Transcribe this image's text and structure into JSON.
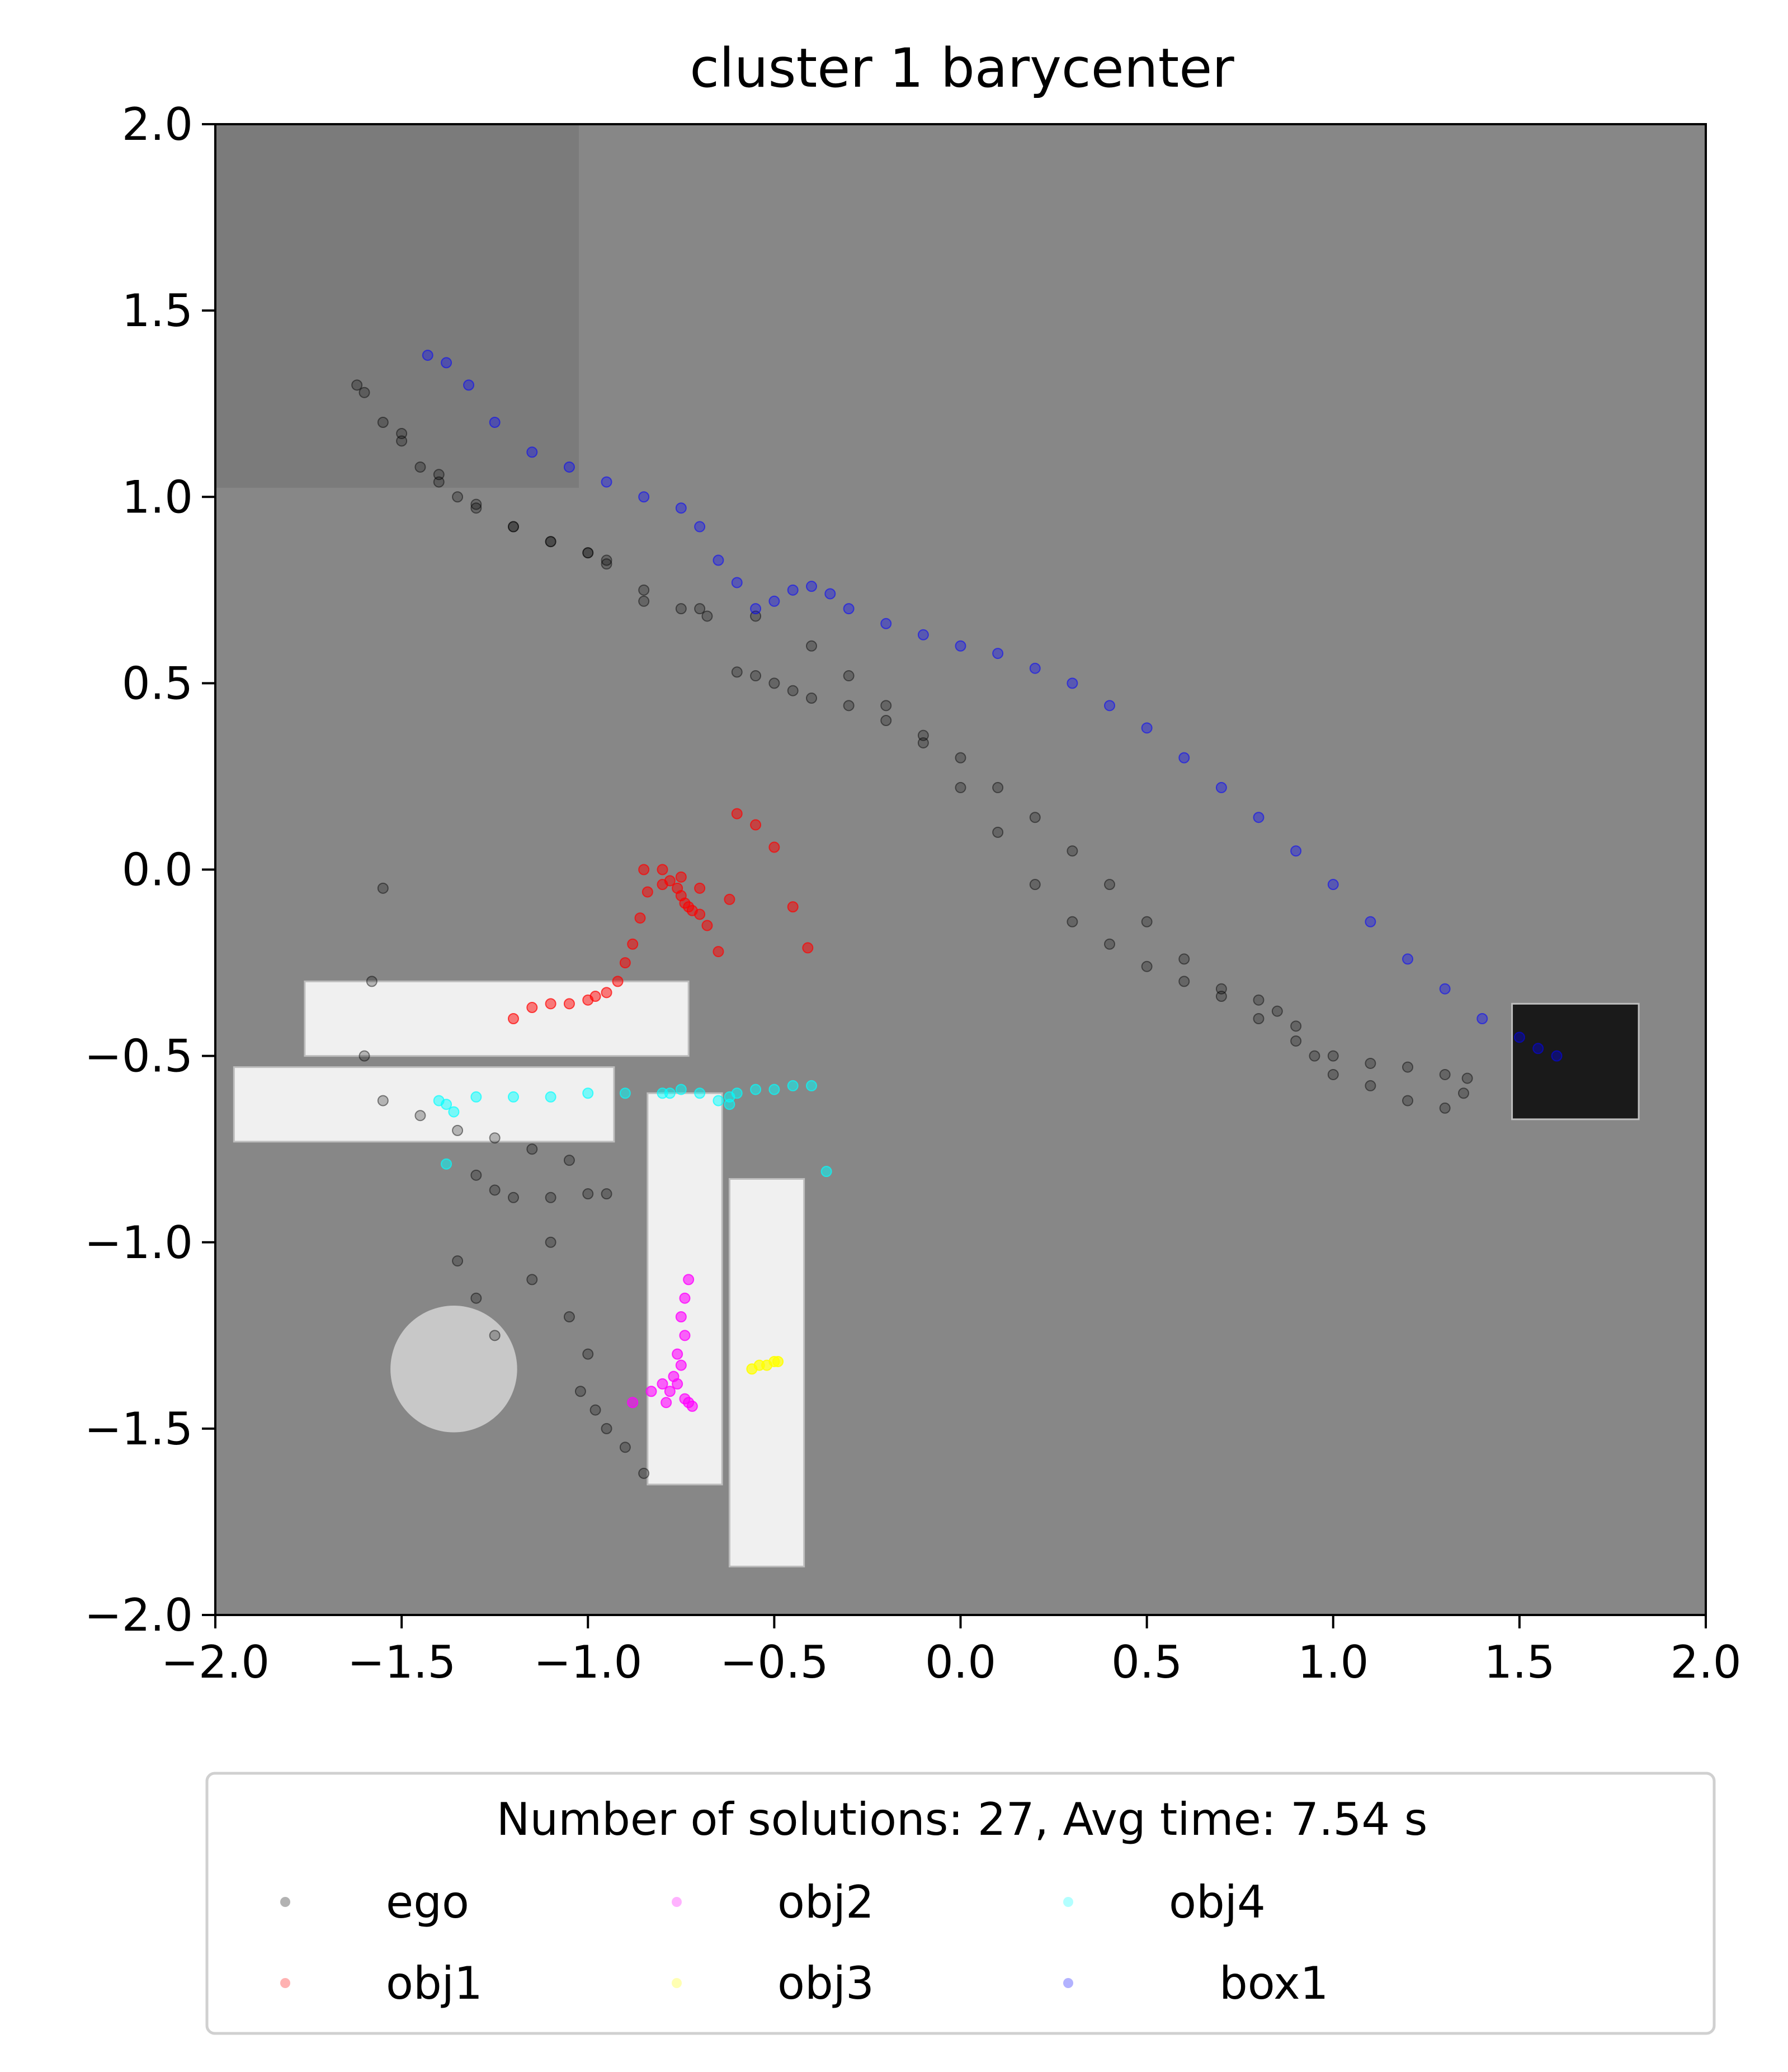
{
  "chart_data": {
    "type": "scatter",
    "title": "cluster 1 barycenter",
    "xlabel": "",
    "ylabel": "",
    "xlim": [
      -2.0,
      2.0
    ],
    "ylim": [
      -2.0,
      2.0
    ],
    "x_ticks": [
      -2.0,
      -1.5,
      -1.0,
      -0.5,
      0.0,
      0.5,
      1.0,
      1.5,
      2.0
    ],
    "y_ticks": [
      -2.0,
      -1.5,
      -1.0,
      -0.5,
      0.0,
      0.5,
      1.0,
      1.5,
      2.0
    ],
    "x_tick_labels": [
      "−2.0",
      "−1.5",
      "−1.0",
      "−0.5",
      "0.0",
      "0.5",
      "1.0",
      "1.5",
      "2.0"
    ],
    "y_tick_labels": [
      "2.0",
      "1.5",
      "1.0",
      "0.5",
      "0.0",
      "−0.5",
      "−1.0",
      "−1.5",
      "−2.0"
    ],
    "grid": false,
    "background": "grayscale scene render",
    "legend": {
      "title": "Number of solutions: 27, Avg time: 7.54 s",
      "placement": "below plot",
      "columns": 4,
      "entries": [
        "ego",
        "obj1",
        "obj2",
        "obj3",
        "obj4",
        "box1"
      ]
    },
    "obstacles": [
      {
        "shape": "rect",
        "x": [
          -1.76,
          -0.73
        ],
        "y": [
          -0.5,
          -0.3
        ],
        "color": "#f0f0f0"
      },
      {
        "shape": "rect",
        "x": [
          -1.95,
          -0.93
        ],
        "y": [
          -0.73,
          -0.53
        ],
        "color": "#f0f0f0"
      },
      {
        "shape": "rect",
        "x": [
          -0.84,
          -0.64
        ],
        "y": [
          -1.65,
          -0.6
        ],
        "color": "#f0f0f0"
      },
      {
        "shape": "rect",
        "x": [
          -0.62,
          -0.42
        ],
        "y": [
          -1.87,
          -0.83
        ],
        "color": "#f0f0f0"
      },
      {
        "shape": "circle",
        "cx": -1.36,
        "cy": -1.34,
        "r": 0.17,
        "color": "#c8c8c8"
      },
      {
        "shape": "rect",
        "x": [
          1.48,
          1.82
        ],
        "y": [
          -0.67,
          -0.36
        ],
        "color": "#1a1a1a"
      }
    ],
    "series": [
      {
        "name": "ego",
        "color": "#000000",
        "alpha": 0.25,
        "x": [
          -1.62,
          -1.55,
          -1.5,
          -1.45,
          -1.4,
          -1.35,
          -1.3,
          -1.2,
          -1.1,
          -1.0,
          -0.95,
          -0.85,
          -0.75,
          -0.68,
          -0.6,
          -0.55,
          -0.5,
          -0.45,
          -0.4,
          -0.3,
          -0.2,
          -0.1,
          0.0,
          0.1,
          0.2,
          0.3,
          0.4,
          0.5,
          0.6,
          0.7,
          0.8,
          0.9,
          1.0,
          1.1,
          1.2,
          1.3,
          1.36,
          -1.6,
          -1.5,
          -1.4,
          -1.3,
          -1.2,
          -1.1,
          -1.0,
          -0.95,
          -0.85,
          -0.7,
          -0.55,
          -0.4,
          -0.3,
          -0.2,
          -0.1,
          0.0,
          0.1,
          0.2,
          0.3,
          0.4,
          0.5,
          0.6,
          0.7,
          0.8,
          0.85,
          0.9,
          0.95,
          1.0,
          1.1,
          1.2,
          1.3,
          1.35,
          -1.55,
          -1.58,
          -1.6,
          -1.55,
          -1.45,
          -1.35,
          -1.25,
          -1.15,
          -1.05,
          -1.3,
          -1.25,
          -1.2,
          -1.1,
          -1.0,
          -0.95,
          -1.1,
          -1.15,
          -1.05,
          -1.0,
          -1.02,
          -0.98,
          -0.95,
          -0.9,
          -0.85,
          -1.35,
          -1.3,
          -1.25
        ],
        "y": [
          1.3,
          1.2,
          1.15,
          1.08,
          1.04,
          1.0,
          0.97,
          0.92,
          0.88,
          0.85,
          0.82,
          0.75,
          0.7,
          0.68,
          0.53,
          0.52,
          0.5,
          0.48,
          0.46,
          0.44,
          0.4,
          0.36,
          0.3,
          0.22,
          0.14,
          0.05,
          -0.04,
          -0.14,
          -0.24,
          -0.34,
          -0.4,
          -0.46,
          -0.5,
          -0.52,
          -0.53,
          -0.55,
          -0.56,
          1.28,
          1.17,
          1.06,
          0.98,
          0.92,
          0.88,
          0.85,
          0.83,
          0.72,
          0.7,
          0.68,
          0.6,
          0.52,
          0.44,
          0.34,
          0.22,
          0.1,
          -0.04,
          -0.14,
          -0.2,
          -0.26,
          -0.3,
          -0.32,
          -0.35,
          -0.38,
          -0.42,
          -0.5,
          -0.55,
          -0.58,
          -0.62,
          -0.64,
          -0.6,
          -0.05,
          -0.3,
          -0.5,
          -0.62,
          -0.66,
          -0.7,
          -0.72,
          -0.75,
          -0.78,
          -0.82,
          -0.86,
          -0.88,
          -0.88,
          -0.87,
          -0.87,
          -1.0,
          -1.1,
          -1.2,
          -1.3,
          -1.4,
          -1.45,
          -1.5,
          -1.55,
          -1.62,
          -1.05,
          -1.15,
          -1.25
        ]
      },
      {
        "name": "obj1",
        "color": "#ff0000",
        "alpha": 0.5,
        "x": [
          -1.2,
          -1.15,
          -1.1,
          -1.05,
          -1.0,
          -0.98,
          -0.95,
          -0.92,
          -0.9,
          -0.88,
          -0.86,
          -0.84,
          -0.8,
          -0.78,
          -0.76,
          -0.75,
          -0.74,
          -0.73,
          -0.72,
          -0.7,
          -0.68,
          -0.65,
          -0.62,
          -0.6,
          -0.55,
          -0.5,
          -0.45,
          -0.41,
          -0.85,
          -0.8,
          -0.75,
          -0.7
        ],
        "y": [
          -0.4,
          -0.37,
          -0.36,
          -0.36,
          -0.35,
          -0.34,
          -0.33,
          -0.3,
          -0.25,
          -0.2,
          -0.13,
          -0.06,
          -0.04,
          -0.03,
          -0.05,
          -0.07,
          -0.09,
          -0.1,
          -0.11,
          -0.12,
          -0.15,
          -0.22,
          -0.08,
          0.15,
          0.12,
          0.06,
          -0.1,
          -0.21,
          0.0,
          0.0,
          -0.02,
          -0.05
        ]
      },
      {
        "name": "obj2",
        "color": "#ff00ff",
        "alpha": 0.6,
        "x": [
          -0.73,
          -0.74,
          -0.75,
          -0.74,
          -0.76,
          -0.75,
          -0.77,
          -0.76,
          -0.78,
          -0.74,
          -0.73,
          -0.72,
          -0.79,
          -0.8,
          -0.88,
          -0.83
        ],
        "y": [
          -1.1,
          -1.15,
          -1.2,
          -1.25,
          -1.3,
          -1.33,
          -1.36,
          -1.38,
          -1.4,
          -1.42,
          -1.43,
          -1.44,
          -1.43,
          -1.38,
          -1.43,
          -1.4
        ]
      },
      {
        "name": "obj3",
        "color": "#ffff00",
        "alpha": 0.7,
        "x": [
          -0.56,
          -0.54,
          -0.52,
          -0.5,
          -0.49
        ],
        "y": [
          -1.34,
          -1.33,
          -1.33,
          -1.32,
          -1.32
        ]
      },
      {
        "name": "obj4",
        "color": "#00ffff",
        "alpha": 0.5,
        "x": [
          -1.4,
          -1.38,
          -1.36,
          -1.3,
          -1.2,
          -1.1,
          -1.0,
          -0.9,
          -0.8,
          -0.75,
          -0.7,
          -0.65,
          -0.62,
          -0.6,
          -0.55,
          -0.5,
          -0.45,
          -0.4,
          -1.38,
          -0.36,
          -0.78,
          -0.62
        ],
        "y": [
          -0.62,
          -0.63,
          -0.65,
          -0.61,
          -0.61,
          -0.61,
          -0.6,
          -0.6,
          -0.6,
          -0.59,
          -0.6,
          -0.62,
          -0.61,
          -0.6,
          -0.59,
          -0.59,
          -0.58,
          -0.58,
          -0.79,
          -0.81,
          -0.6,
          -0.63
        ]
      },
      {
        "name": "box1",
        "color": "#0000ff",
        "alpha": 0.35,
        "x": [
          -1.43,
          -1.38,
          -1.32,
          -1.25,
          -1.15,
          -1.05,
          -0.95,
          -0.85,
          -0.75,
          -0.7,
          -0.65,
          -0.6,
          -0.55,
          -0.5,
          -0.45,
          -0.4,
          -0.35,
          -0.3,
          -0.2,
          -0.1,
          0.0,
          0.1,
          0.2,
          0.3,
          0.4,
          0.5,
          0.6,
          0.7,
          0.8,
          0.9,
          1.0,
          1.1,
          1.2,
          1.3,
          1.4,
          1.5,
          1.55,
          1.6
        ],
        "y": [
          1.38,
          1.36,
          1.3,
          1.2,
          1.12,
          1.08,
          1.04,
          1.0,
          0.97,
          0.92,
          0.83,
          0.77,
          0.7,
          0.72,
          0.75,
          0.76,
          0.74,
          0.7,
          0.66,
          0.63,
          0.6,
          0.58,
          0.54,
          0.5,
          0.44,
          0.38,
          0.3,
          0.22,
          0.14,
          0.05,
          -0.04,
          -0.14,
          -0.24,
          -0.32,
          -0.4,
          -0.45,
          -0.48,
          -0.5
        ]
      }
    ]
  }
}
